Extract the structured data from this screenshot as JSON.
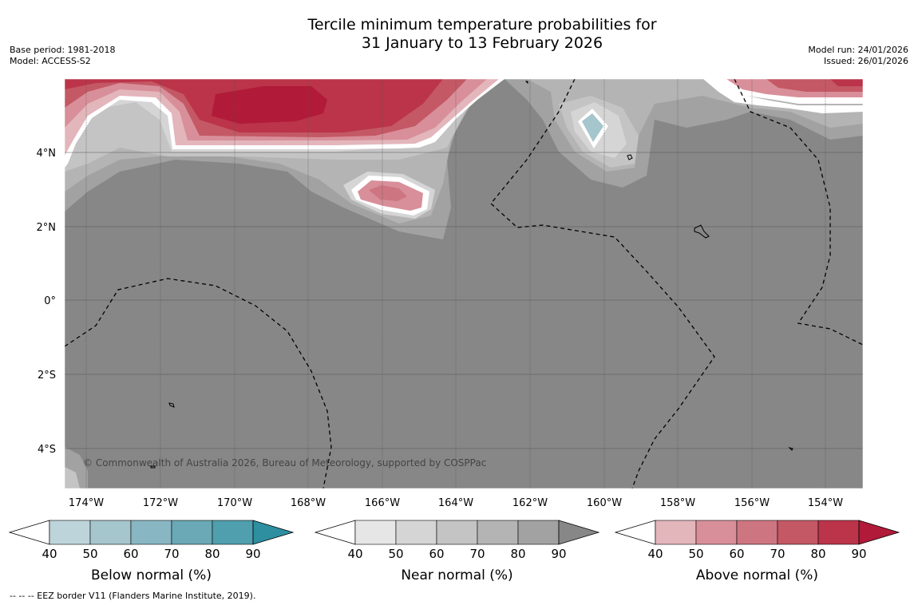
{
  "title_line1": "Tercile minimum temperature probabilities for",
  "title_line2": "31 January to 13 February 2026",
  "base_period": "Base period: 1981-2018",
  "model": "Model: ACCESS-S2",
  "model_run": "Model run: 24/01/2026",
  "issued": "Issued: 26/01/2026",
  "copyright": "© Commonwealth of Australia 2026, Bureau of Meteorology, supported by COSPPac",
  "eez_note": "-- -- -- EEZ border V11 (Flanders Marine Institute, 2019).",
  "lat_labels": [
    "4°N",
    "2°N",
    "0°",
    "2°S",
    "4°S"
  ],
  "lon_labels": [
    "174°W",
    "172°W",
    "170°W",
    "168°W",
    "166°W",
    "164°W",
    "162°W",
    "160°W",
    "158°W",
    "156°W",
    "154°W"
  ],
  "colorbars": [
    {
      "title": "Below normal (%)",
      "ticks": [
        "40",
        "50",
        "60",
        "70",
        "80",
        "90"
      ],
      "colors": [
        "#bdd4da",
        "#a5c6cc",
        "#88b6c2",
        "#6aa9b5",
        "#4f9fae",
        "#2d8fa0"
      ]
    },
    {
      "title": "Near normal (%)",
      "ticks": [
        "40",
        "50",
        "60",
        "70",
        "80",
        "90"
      ],
      "colors": [
        "#e6e6e6",
        "#d5d5d5",
        "#c4c4c4",
        "#b4b4b4",
        "#a2a2a2",
        "#878787"
      ]
    },
    {
      "title": "Above normal (%)",
      "ticks": [
        "40",
        "50",
        "60",
        "70",
        "80",
        "90"
      ],
      "colors": [
        "#e3b6bc",
        "#d88f99",
        "#cd7681",
        "#c45865",
        "#bb3449",
        "#b11a38"
      ]
    }
  ]
}
